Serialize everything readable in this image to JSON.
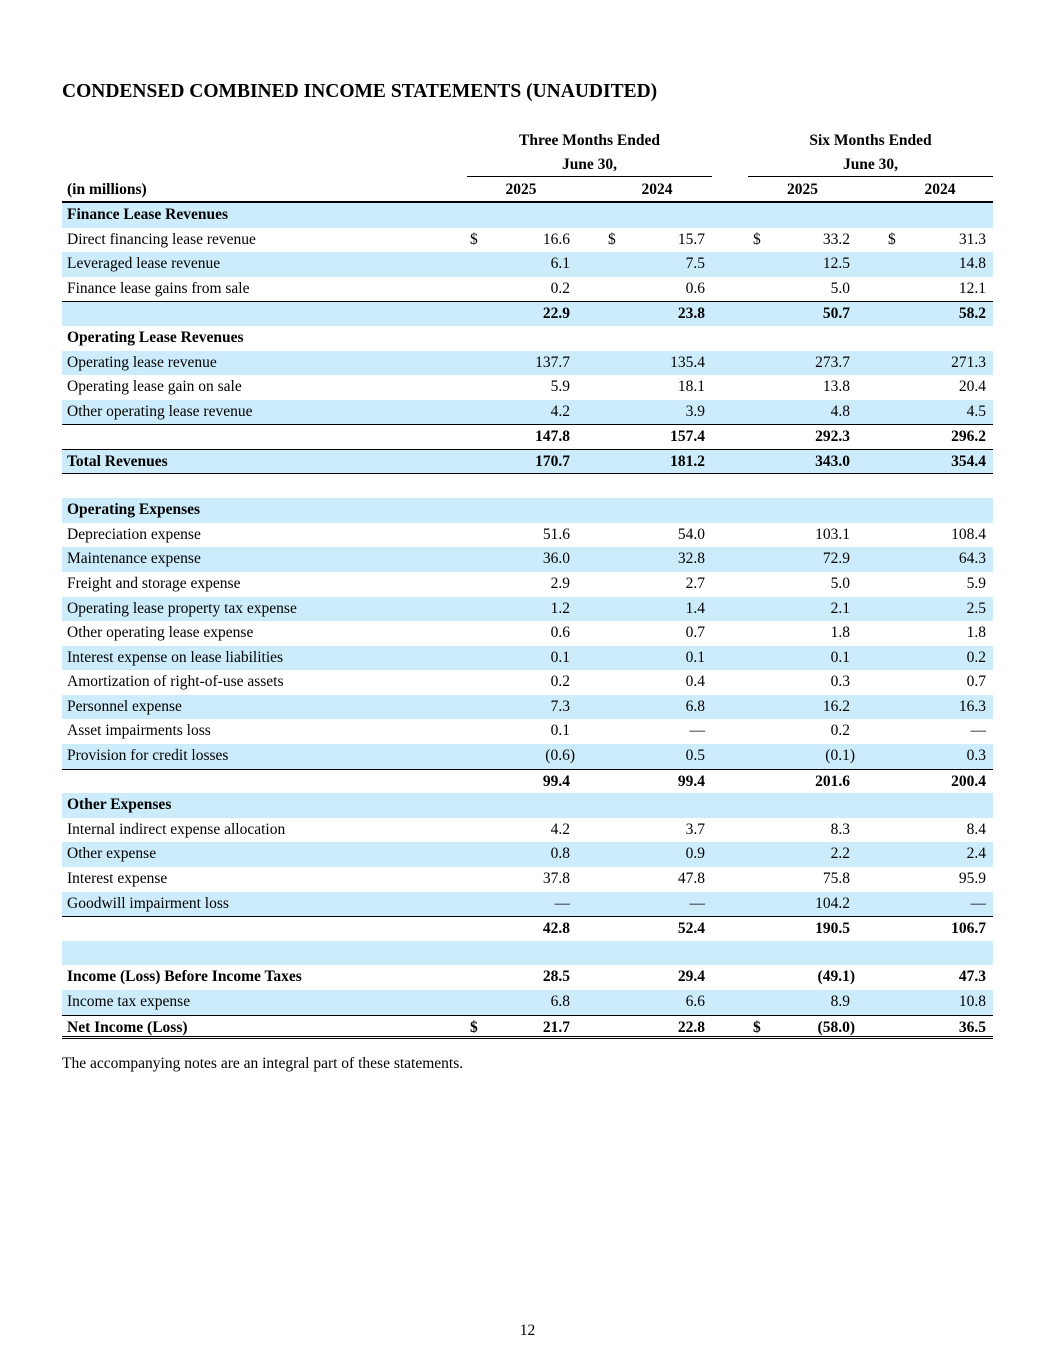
{
  "title": "CONDENSED COMBINED INCOME STATEMENTS (UNAUDITED)",
  "header": {
    "units": "(in millions)",
    "groups": [
      {
        "line1": "Three Months Ended",
        "line2": "June 30,"
      },
      {
        "line1": "Six Months Ended",
        "line2": "June 30,"
      }
    ],
    "years": [
      "2025",
      "2024",
      "2025",
      "2024"
    ]
  },
  "colors": {
    "row_shade": "#ccecfb"
  },
  "rows": [
    {
      "label": "Finance Lease Revenues",
      "style": "section"
    },
    {
      "label": "Direct financing lease revenue",
      "values": [
        "16.6",
        "15.7",
        "33.2",
        "31.3"
      ],
      "dollars": [
        true,
        true,
        true,
        true
      ]
    },
    {
      "label": "Leveraged lease revenue",
      "values": [
        "6.1",
        "7.5",
        "12.5",
        "14.8"
      ]
    },
    {
      "label": "Finance lease gains from sale",
      "values": [
        "0.2",
        "0.6",
        "5.0",
        "12.1"
      ]
    },
    {
      "label": "",
      "style": "subtotal",
      "values": [
        "22.9",
        "23.8",
        "50.7",
        "58.2"
      ]
    },
    {
      "label": "Operating Lease Revenues",
      "style": "section"
    },
    {
      "label": "Operating lease revenue",
      "values": [
        "137.7",
        "135.4",
        "273.7",
        "271.3"
      ]
    },
    {
      "label": "Operating lease gain on sale",
      "values": [
        "5.9",
        "18.1",
        "13.8",
        "20.4"
      ]
    },
    {
      "label": "Other operating lease revenue",
      "values": [
        "4.2",
        "3.9",
        "4.8",
        "4.5"
      ]
    },
    {
      "label": "",
      "style": "subtotal",
      "values": [
        "147.8",
        "157.4",
        "292.3",
        "296.2"
      ]
    },
    {
      "label": "Total Revenues",
      "style": "total",
      "values": [
        "170.7",
        "181.2",
        "343.0",
        "354.4"
      ]
    },
    {
      "label": "",
      "style": "blank"
    },
    {
      "label": "Operating Expenses",
      "style": "section"
    },
    {
      "label": "Depreciation expense",
      "values": [
        "51.6",
        "54.0",
        "103.1",
        "108.4"
      ]
    },
    {
      "label": "Maintenance expense",
      "values": [
        "36.0",
        "32.8",
        "72.9",
        "64.3"
      ]
    },
    {
      "label": "Freight and storage expense",
      "values": [
        "2.9",
        "2.7",
        "5.0",
        "5.9"
      ]
    },
    {
      "label": "Operating lease property tax expense",
      "values": [
        "1.2",
        "1.4",
        "2.1",
        "2.5"
      ]
    },
    {
      "label": "Other operating lease expense",
      "values": [
        "0.6",
        "0.7",
        "1.8",
        "1.8"
      ]
    },
    {
      "label": "Interest expense on lease liabilities",
      "values": [
        "0.1",
        "0.1",
        "0.1",
        "0.2"
      ]
    },
    {
      "label": "Amortization of right-of-use assets",
      "values": [
        "0.2",
        "0.4",
        "0.3",
        "0.7"
      ]
    },
    {
      "label": "Personnel expense",
      "values": [
        "7.3",
        "6.8",
        "16.2",
        "16.3"
      ]
    },
    {
      "label": "Asset impairments loss",
      "values": [
        "0.1",
        "—",
        "0.2",
        "—"
      ]
    },
    {
      "label": "Provision for credit losses",
      "values": [
        "(0.6)",
        "0.5",
        "(0.1)",
        "0.3"
      ]
    },
    {
      "label": "",
      "style": "subtotal",
      "values": [
        "99.4",
        "99.4",
        "201.6",
        "200.4"
      ]
    },
    {
      "label": "Other Expenses",
      "style": "section"
    },
    {
      "label": "Internal indirect expense allocation",
      "values": [
        "4.2",
        "3.7",
        "8.3",
        "8.4"
      ]
    },
    {
      "label": "Other expense",
      "values": [
        "0.8",
        "0.9",
        "2.2",
        "2.4"
      ]
    },
    {
      "label": "Interest expense",
      "values": [
        "37.8",
        "47.8",
        "75.8",
        "95.9"
      ]
    },
    {
      "label": "Goodwill impairment loss",
      "values": [
        "—",
        "—",
        "104.2",
        "—"
      ]
    },
    {
      "label": "",
      "style": "subtotal",
      "values": [
        "42.8",
        "52.4",
        "190.5",
        "106.7"
      ]
    },
    {
      "label": "",
      "style": "blank"
    },
    {
      "label": "Income (Loss) Before Income Taxes",
      "style": "section",
      "values": [
        "28.5",
        "29.4",
        "(49.1)",
        "47.3"
      ]
    },
    {
      "label": "Income tax expense",
      "values": [
        "6.8",
        "6.6",
        "8.9",
        "10.8"
      ]
    },
    {
      "label": "Net Income (Loss)",
      "style": "net",
      "values": [
        "21.7",
        "22.8",
        "(58.0)",
        "36.5"
      ],
      "dollars": [
        true,
        false,
        true,
        false
      ]
    }
  ],
  "dollar_sign": "$",
  "footnote": "The accompanying notes are an integral part of these statements.",
  "page_number": "12"
}
